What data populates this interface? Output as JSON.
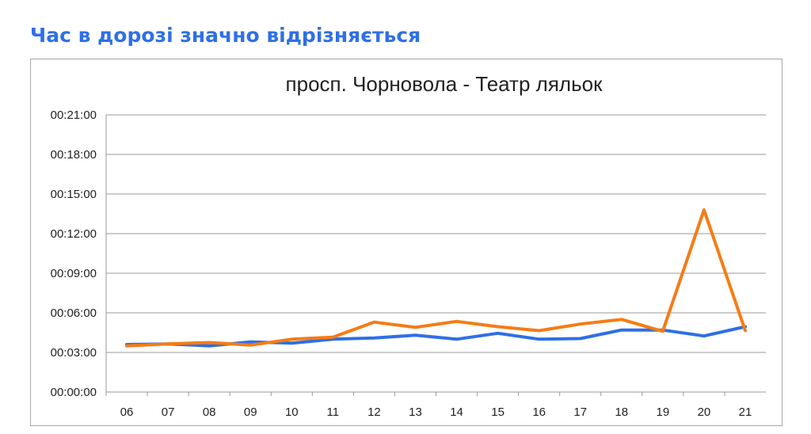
{
  "page": {
    "heading": "Час в дорозі значно відрізняється"
  },
  "colors": {
    "heading": "#2f6fe8",
    "series_blue": "#2e6fe6",
    "series_orange": "#f57c15",
    "grid": "#9a9a9a"
  },
  "chart_data": {
    "type": "line",
    "title": "просп. Чорновола - Театр ляльок",
    "xlabel": "",
    "ylabel": "",
    "categories": [
      "06",
      "07",
      "08",
      "09",
      "10",
      "11",
      "12",
      "13",
      "14",
      "15",
      "16",
      "17",
      "18",
      "19",
      "20",
      "21"
    ],
    "y_unit": "minutes",
    "ylim": [
      0,
      21
    ],
    "y_ticks": [
      0,
      3,
      6,
      9,
      12,
      15,
      18,
      21
    ],
    "y_tick_labels": [
      "00:00:00",
      "00:03:00",
      "00:06:00",
      "00:09:00",
      "00:12:00",
      "00:15:00",
      "00:18:00",
      "00:21:00"
    ],
    "grid": true,
    "legend": "none",
    "series": [
      {
        "color": "#2e6fe6",
        "values": [
          3.6,
          3.65,
          3.5,
          3.8,
          3.7,
          4.0,
          4.1,
          4.3,
          4.0,
          4.45,
          4.0,
          4.05,
          4.7,
          4.7,
          4.25,
          4.95
        ]
      },
      {
        "color": "#f57c15",
        "values": [
          3.5,
          3.65,
          3.75,
          3.55,
          4.0,
          4.15,
          5.3,
          4.9,
          5.35,
          4.95,
          4.65,
          5.15,
          5.5,
          4.6,
          13.8,
          4.65
        ]
      }
    ]
  }
}
